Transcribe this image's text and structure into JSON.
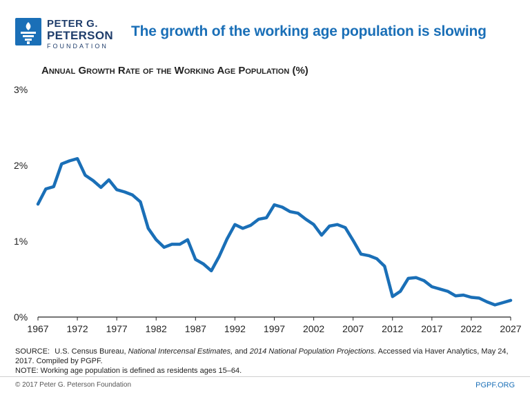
{
  "branding": {
    "logo_line1": "PETER G.",
    "logo_line2": "PETERSON",
    "logo_line3": "FOUNDATION",
    "brand_color": "#1a6fb7",
    "logo_icon": "torch-icon"
  },
  "headline": "The growth of the working age population is slowing",
  "chart_data": {
    "type": "line",
    "title": "Annual Growth Rate of the Working Age Population (%)",
    "xlabel": "",
    "ylabel": "",
    "xlim": [
      1967,
      2027
    ],
    "ylim": [
      0,
      3
    ],
    "x_ticks": [
      1967,
      1972,
      1977,
      1982,
      1987,
      1992,
      1997,
      2002,
      2007,
      2012,
      2017,
      2022,
      2027
    ],
    "y_ticks": [
      {
        "value": 0,
        "label": "0%"
      },
      {
        "value": 1,
        "label": "1%"
      },
      {
        "value": 2,
        "label": "2%"
      },
      {
        "value": 3,
        "label": "3%"
      }
    ],
    "grid": false,
    "legend": "none",
    "line_color": "#1a6fb7",
    "series": [
      {
        "x": [
          1967,
          1968,
          1969,
          1970,
          1971,
          1972,
          1973,
          1974,
          1975,
          1976,
          1977,
          1978,
          1979,
          1980,
          1981,
          1982,
          1983,
          1984,
          1985,
          1986,
          1987,
          1988,
          1989,
          1990,
          1991,
          1992,
          1993,
          1994,
          1995,
          1996,
          1997,
          1998,
          1999,
          2000,
          2001,
          2002,
          2003,
          2004,
          2005,
          2006,
          2007,
          2008,
          2009,
          2010,
          2011,
          2012,
          2013,
          2014,
          2015,
          2016,
          2017,
          2018,
          2019,
          2020,
          2021,
          2022,
          2023,
          2024,
          2025,
          2026,
          2027
        ],
        "values": [
          1.49,
          1.69,
          1.72,
          2.02,
          2.06,
          2.09,
          1.87,
          1.8,
          1.71,
          1.81,
          1.68,
          1.65,
          1.61,
          1.52,
          1.17,
          1.02,
          0.92,
          0.96,
          0.96,
          1.02,
          0.76,
          0.7,
          0.61,
          0.8,
          1.03,
          1.22,
          1.17,
          1.21,
          1.29,
          1.31,
          1.48,
          1.45,
          1.39,
          1.37,
          1.29,
          1.22,
          1.08,
          1.2,
          1.22,
          1.18,
          1.01,
          0.83,
          0.81,
          0.77,
          0.67,
          0.27,
          0.34,
          0.51,
          0.52,
          0.48,
          0.4,
          0.37,
          0.34,
          0.28,
          0.29,
          0.26,
          0.25,
          0.2,
          0.16,
          0.19,
          0.22
        ]
      }
    ]
  },
  "source": {
    "label": "SOURCE:",
    "text1": "U.S. Census Bureau,",
    "italic1": "National Intercensal Estimates,",
    "text2": "and",
    "italic2": "2014 National Population Projections.",
    "text3": "Accessed via Haver Analytics, May 24, 2017. Compiled by PGPF.",
    "note": "NOTE: Working age population is defined as residents ages 15–64."
  },
  "footer": {
    "copyright": "© 2017 Peter G. Peterson Foundation",
    "site": "PGPF.ORG"
  }
}
